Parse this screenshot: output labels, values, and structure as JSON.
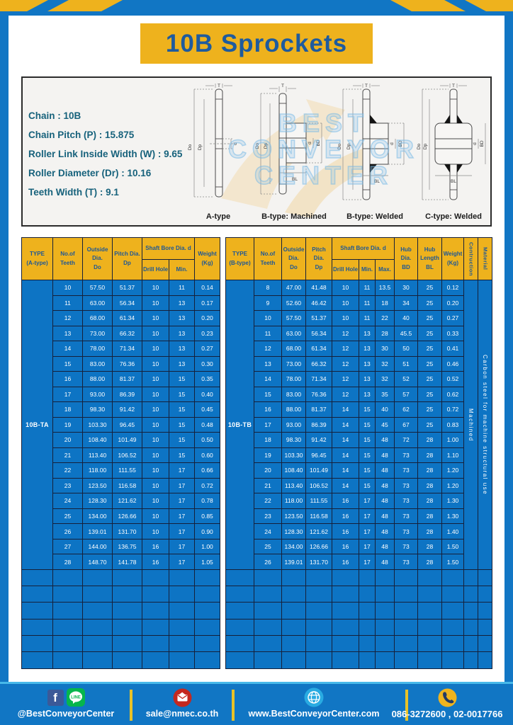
{
  "title": "10B Sprockets",
  "specs": {
    "lines": [
      "Chain : 10B",
      "Chain Pitch (P) : 15.875",
      "Roller Link Inside Width (W) : 9.65",
      "Roller Diameter (Dr) : 10.16",
      "Teeth Width (T) : 9.1"
    ]
  },
  "watermark": {
    "lines": [
      "BEST",
      "CONVEYOR",
      "CENTER"
    ]
  },
  "drawings": {
    "dim_t": "T",
    "dim_do": "Do",
    "dim_dp": "Dp",
    "dim_d": "d",
    "dim_bd": "BD",
    "dim_bl": "BL",
    "captions": [
      "A-type",
      "B-type: Machined",
      "B-type: Welded",
      "C-type: Welded"
    ]
  },
  "table_a": {
    "headers": {
      "type": "TYPE\n(A-type)",
      "teeth": "No.of\nTeeth",
      "outside": "Outside\nDia.\nDo",
      "pitch": "Pitch Dia.\nDp",
      "shaft_bore": "Shaft Bore Dia. d",
      "drill": "Drill Hole",
      "min": "Min.",
      "weight": "Weight\n(Kg)"
    },
    "type_label": "10B-TA",
    "empty_rows": 6,
    "rows": [
      [
        "10",
        "57.50",
        "51.37",
        "10",
        "11",
        "0.14"
      ],
      [
        "11",
        "63.00",
        "56.34",
        "10",
        "13",
        "0.17"
      ],
      [
        "12",
        "68.00",
        "61.34",
        "10",
        "13",
        "0.20"
      ],
      [
        "13",
        "73.00",
        "66.32",
        "10",
        "13",
        "0.23"
      ],
      [
        "14",
        "78.00",
        "71.34",
        "10",
        "13",
        "0.27"
      ],
      [
        "15",
        "83.00",
        "76.36",
        "10",
        "13",
        "0.30"
      ],
      [
        "16",
        "88.00",
        "81.37",
        "10",
        "15",
        "0.35"
      ],
      [
        "17",
        "93.00",
        "86.39",
        "10",
        "15",
        "0.40"
      ],
      [
        "18",
        "98.30",
        "91.42",
        "10",
        "15",
        "0.45"
      ],
      [
        "19",
        "103.30",
        "96.45",
        "10",
        "15",
        "0.48"
      ],
      [
        "20",
        "108.40",
        "101.49",
        "10",
        "15",
        "0.50"
      ],
      [
        "21",
        "113.40",
        "106.52",
        "10",
        "15",
        "0.60"
      ],
      [
        "22",
        "118.00",
        "111.55",
        "10",
        "17",
        "0.66"
      ],
      [
        "23",
        "123.50",
        "116.58",
        "10",
        "17",
        "0.72"
      ],
      [
        "24",
        "128.30",
        "121.62",
        "10",
        "17",
        "0.78"
      ],
      [
        "25",
        "134.00",
        "126.66",
        "10",
        "17",
        "0.85"
      ],
      [
        "26",
        "139.01",
        "131.70",
        "10",
        "17",
        "0.90"
      ],
      [
        "27",
        "144.00",
        "136.75",
        "16",
        "17",
        "1.00"
      ],
      [
        "28",
        "148.70",
        "141.78",
        "16",
        "17",
        "1.05"
      ]
    ]
  },
  "table_b": {
    "headers": {
      "type": "TYPE\n(B-type)",
      "teeth": "No.of\nTeeth",
      "outside": "Outside\nDia.\nDo",
      "pitch": "Pitch Dia.\nDp",
      "shaft_bore": "Shaft Bore Dia. d",
      "drill": "Drill Hole",
      "min": "Min.",
      "max": "Max.",
      "hub_dia": "Hub Dia.\nBD",
      "hub_len": "Hub\nLength\nBL",
      "weight": "Weight\n(Kg)",
      "construction": "Contruction",
      "material": "Material"
    },
    "type_label": "10B-TB",
    "construction_value": "Machined",
    "material_value": "Carbon steel for machine structural use",
    "empty_rows": 6,
    "rows": [
      [
        "8",
        "47.00",
        "41.48",
        "10",
        "11",
        "13.5",
        "30",
        "25",
        "0.12"
      ],
      [
        "9",
        "52.60",
        "46.42",
        "10",
        "11",
        "18",
        "34",
        "25",
        "0.20"
      ],
      [
        "10",
        "57.50",
        "51.37",
        "10",
        "11",
        "22",
        "40",
        "25",
        "0.27"
      ],
      [
        "11",
        "63.00",
        "56.34",
        "12",
        "13",
        "28",
        "45.5",
        "25",
        "0.33"
      ],
      [
        "12",
        "68.00",
        "61.34",
        "12",
        "13",
        "30",
        "50",
        "25",
        "0.41"
      ],
      [
        "13",
        "73.00",
        "66.32",
        "12",
        "13",
        "32",
        "51",
        "25",
        "0.46"
      ],
      [
        "14",
        "78.00",
        "71.34",
        "12",
        "13",
        "32",
        "52",
        "25",
        "0.52"
      ],
      [
        "15",
        "83.00",
        "76.36",
        "12",
        "13",
        "35",
        "57",
        "25",
        "0.62"
      ],
      [
        "16",
        "88.00",
        "81.37",
        "14",
        "15",
        "40",
        "62",
        "25",
        "0.72"
      ],
      [
        "17",
        "93.00",
        "86.39",
        "14",
        "15",
        "45",
        "67",
        "25",
        "0.83"
      ],
      [
        "18",
        "98.30",
        "91.42",
        "14",
        "15",
        "48",
        "72",
        "28",
        "1.00"
      ],
      [
        "19",
        "103.30",
        "96.45",
        "14",
        "15",
        "48",
        "73",
        "28",
        "1.10"
      ],
      [
        "20",
        "108.40",
        "101.49",
        "14",
        "15",
        "48",
        "73",
        "28",
        "1.20"
      ],
      [
        "21",
        "113.40",
        "106.52",
        "14",
        "15",
        "48",
        "73",
        "28",
        "1.20"
      ],
      [
        "22",
        "118.00",
        "111.55",
        "16",
        "17",
        "48",
        "73",
        "28",
        "1.30"
      ],
      [
        "23",
        "123.50",
        "116.58",
        "16",
        "17",
        "48",
        "73",
        "28",
        "1.30"
      ],
      [
        "24",
        "128.30",
        "121.62",
        "16",
        "17",
        "48",
        "73",
        "28",
        "1.40"
      ],
      [
        "25",
        "134.00",
        "126.66",
        "16",
        "17",
        "48",
        "73",
        "28",
        "1.50"
      ],
      [
        "26",
        "139.01",
        "131.70",
        "16",
        "17",
        "48",
        "73",
        "28",
        "1.50"
      ]
    ]
  },
  "footer": {
    "social": "@BestConveyorCenter",
    "facebook_letter": "f",
    "line_label": "LINE",
    "email": "sale@nmec.co.th",
    "website": "www.BestConveyorCenter.com",
    "phone": "086-3272600 , 02-0017766"
  },
  "colors": {
    "page_blue": "#1176c4",
    "cell_blue": "#0d74c4",
    "accent_yellow": "#eeb21d",
    "header_text_blue": "#1d5796",
    "table_border": "#16203a",
    "spec_text": "#17627c",
    "facebook_blue": "#3b5998",
    "line_green": "#06b64c",
    "email_red": "#c4281f",
    "globe_blue": "#29abe2",
    "phone_yellow": "#f0b41e"
  }
}
